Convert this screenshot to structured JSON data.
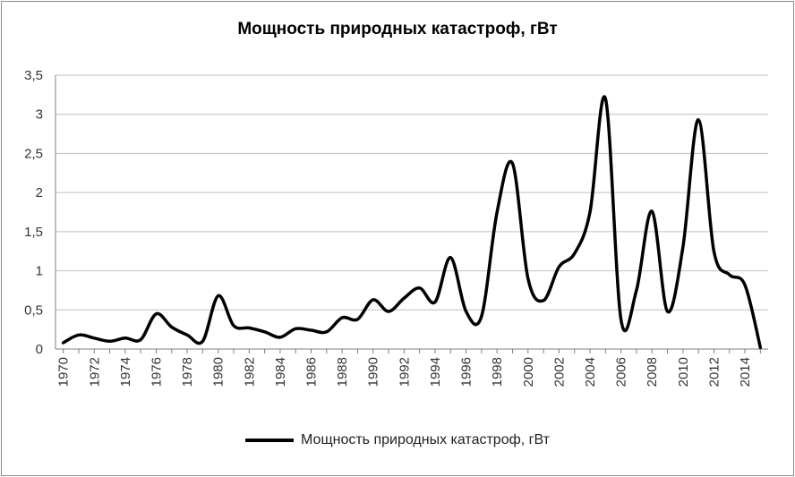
{
  "chart_data": {
    "type": "line",
    "title": "Мощность природных катастроф, гВт",
    "xlabel": "",
    "ylabel": "",
    "ylim": [
      0,
      3.5
    ],
    "y_ticks": [
      "0",
      "0,5",
      "1",
      "1,5",
      "2",
      "2,5",
      "3",
      "3,5"
    ],
    "x_ticks": [
      "1970",
      "1972",
      "1974",
      "1976",
      "1978",
      "1980",
      "1982",
      "1984",
      "1986",
      "1988",
      "1990",
      "1992",
      "1994",
      "1996",
      "1998",
      "2000",
      "2002",
      "2004",
      "2006",
      "2008",
      "2010",
      "2012",
      "2014"
    ],
    "grid": true,
    "legend": "bottom",
    "series": [
      {
        "name": "Мощность природных катастроф, гВт",
        "color": "#000000",
        "x": [
          1970,
          1971,
          1972,
          1973,
          1974,
          1975,
          1976,
          1977,
          1978,
          1979,
          1980,
          1981,
          1982,
          1983,
          1984,
          1985,
          1986,
          1987,
          1988,
          1989,
          1990,
          1991,
          1992,
          1993,
          1994,
          1995,
          1996,
          1997,
          1998,
          1999,
          2000,
          2001,
          2002,
          2003,
          2004,
          2005,
          2006,
          2007,
          2008,
          2009,
          2010,
          2011,
          2012,
          2013,
          2014,
          2015
        ],
        "values": [
          0.08,
          0.18,
          0.14,
          0.1,
          0.14,
          0.12,
          0.45,
          0.28,
          0.18,
          0.1,
          0.68,
          0.3,
          0.27,
          0.22,
          0.15,
          0.26,
          0.24,
          0.22,
          0.4,
          0.38,
          0.63,
          0.48,
          0.65,
          0.78,
          0.6,
          1.17,
          0.48,
          0.42,
          1.75,
          2.37,
          0.9,
          0.62,
          1.05,
          1.22,
          1.75,
          3.2,
          0.38,
          0.75,
          1.76,
          0.48,
          1.3,
          2.93,
          1.25,
          0.95,
          0.82,
          0.02
        ]
      }
    ]
  }
}
